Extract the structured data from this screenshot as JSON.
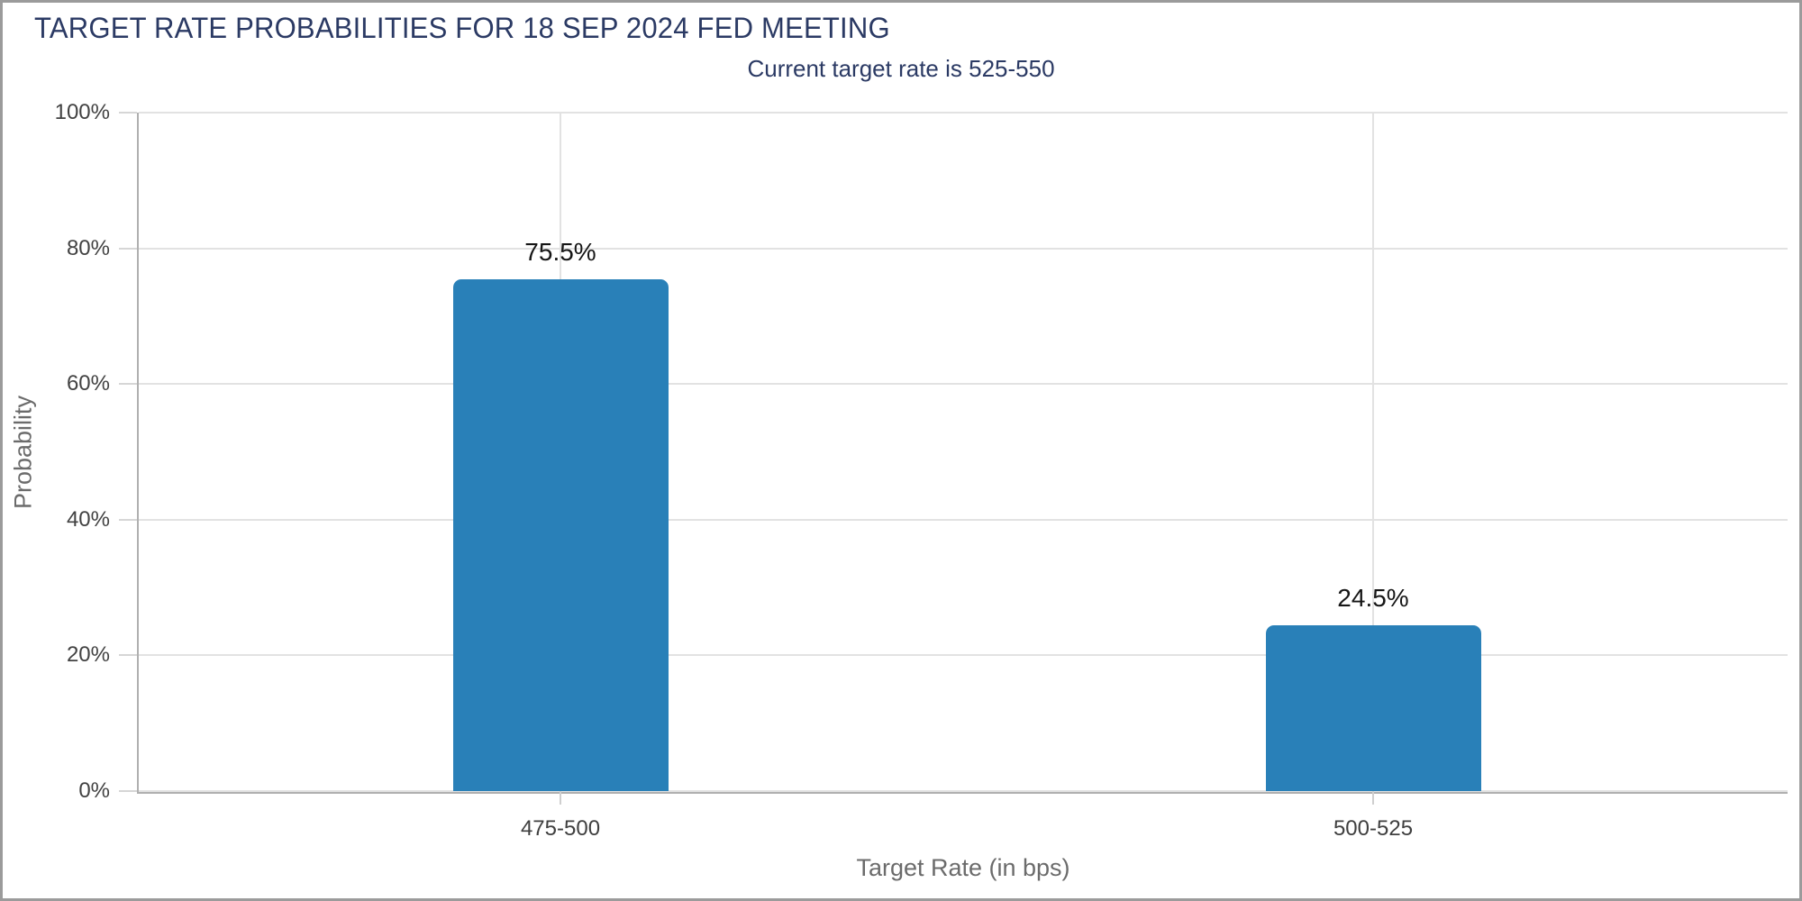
{
  "header": {
    "title": "TARGET RATE PROBABILITIES FOR 18 SEP 2024 FED MEETING",
    "subtitle": "Current target rate is 525-550"
  },
  "chart_data": {
    "type": "bar",
    "title": "TARGET RATE PROBABILITIES FOR 18 SEP 2024 FED MEETING",
    "subtitle": "Current target rate is 525-550",
    "categories": [
      "475-500",
      "500-525"
    ],
    "values": [
      75.5,
      24.5
    ],
    "value_labels": [
      "75.5%",
      "24.5%"
    ],
    "xlabel": "Target Rate (in bps)",
    "ylabel": "Probability",
    "ylim": [
      0,
      100
    ],
    "yticks": [
      0,
      20,
      40,
      60,
      80,
      100
    ],
    "ytick_labels": [
      "0%",
      "20%",
      "40%",
      "60%",
      "80%",
      "100%"
    ],
    "grid": true,
    "legend": "none",
    "bar_color": "#2980b8"
  },
  "colors": {
    "title_navy": "#2b3a64",
    "bar_blue": "#2980b8",
    "axis_gray": "#b0b0b0",
    "gridline_gray": "#e2e2e2",
    "label_gray": "#6b6b6b",
    "tick_text": "#424242",
    "border_gray": "#9b9b9b"
  }
}
